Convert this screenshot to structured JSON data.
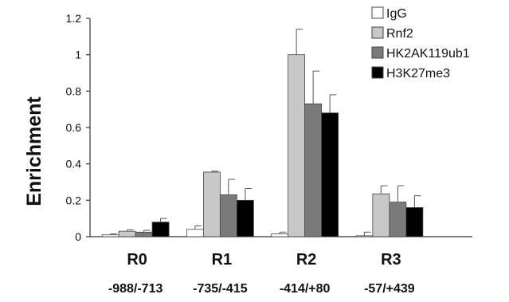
{
  "chart_data": {
    "type": "bar",
    "ylabel": "Enrichment",
    "xlabel": "",
    "ylim": [
      0,
      1.2
    ],
    "yticks": [
      "0",
      "0.2",
      "0.4",
      "0.6",
      "0.8",
      "1",
      "1.2"
    ],
    "ytick_values": [
      0,
      0.2,
      0.4,
      0.6,
      0.8,
      1.0,
      1.2
    ],
    "categories": [
      "R0",
      "R1",
      "R2",
      "R3"
    ],
    "category_sublabels": [
      "-988/-713",
      "-735/-415",
      "-414/+80",
      "-57/+439"
    ],
    "series": [
      {
        "name": "IgG",
        "color": "#ffffff",
        "values": [
          0.01,
          0.04,
          0.015,
          0.005
        ],
        "errors": [
          0.005,
          0.02,
          0.01,
          0.02
        ]
      },
      {
        "name": "Rnf2",
        "color": "#c8c8c8",
        "values": [
          0.03,
          0.355,
          1.0,
          0.235
        ],
        "errors": [
          0.008,
          0.005,
          0.14,
          0.045
        ]
      },
      {
        "name": "HK2AK119ub1",
        "color": "#7a7a7a",
        "values": [
          0.025,
          0.23,
          0.73,
          0.19
        ],
        "errors": [
          0.01,
          0.085,
          0.18,
          0.09
        ]
      },
      {
        "name": "H3K27me3",
        "color": "#000000",
        "values": [
          0.08,
          0.2,
          0.68,
          0.16
        ],
        "errors": [
          0.02,
          0.065,
          0.1,
          0.065
        ]
      }
    ],
    "error_bars": true,
    "grid": false,
    "legend_position": "top-right"
  }
}
